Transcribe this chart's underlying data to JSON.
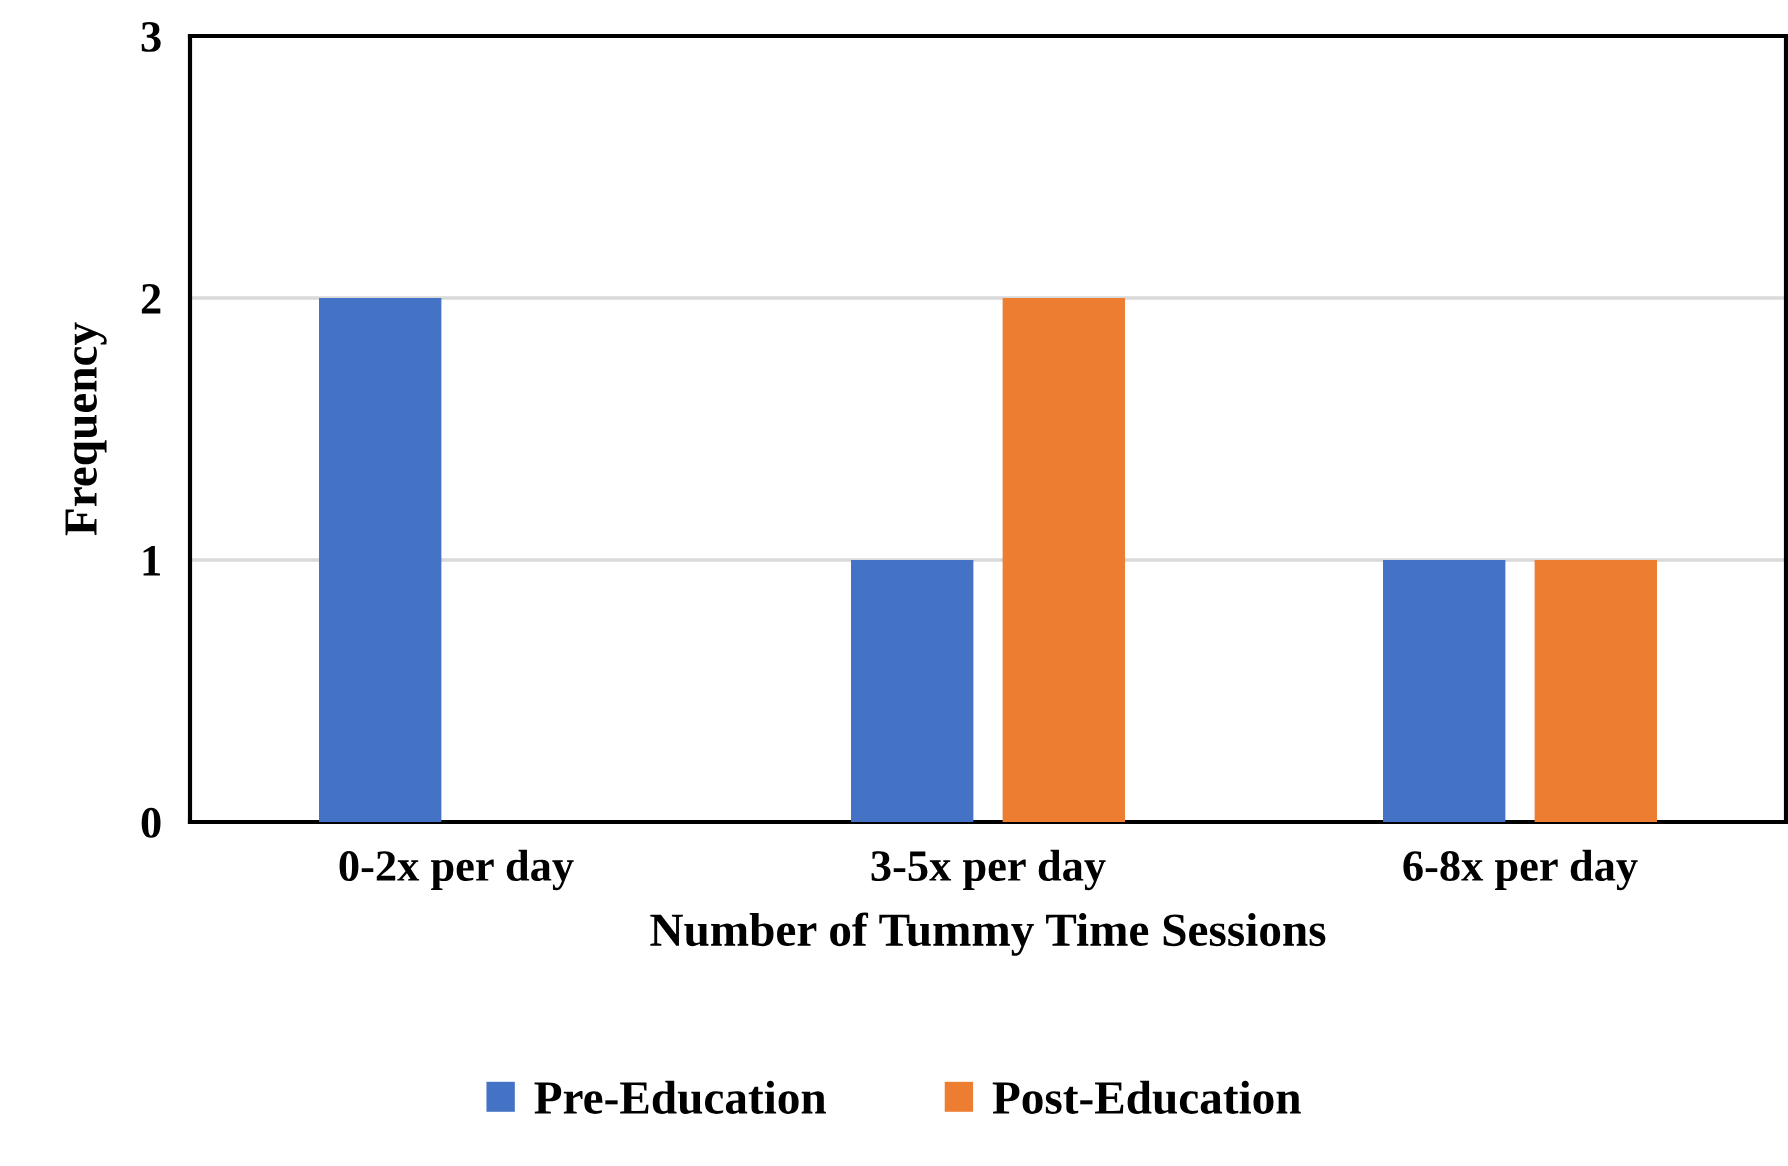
{
  "chart_data": {
    "type": "bar",
    "xlabel": "Number of Tummy Time Sessions",
    "ylabel": "Frequency",
    "categories": [
      "0-2x per day",
      "3-5x per day",
      "6-8x per day"
    ],
    "series": [
      {
        "name": "Pre-Education",
        "color": "#4472c4",
        "values": [
          2,
          1,
          1
        ]
      },
      {
        "name": "Post-Education",
        "color": "#ed7d31",
        "values": [
          0,
          2,
          1
        ]
      }
    ],
    "ylim": [
      0,
      3
    ],
    "yticks": [
      0,
      1,
      2,
      3
    ],
    "grid": "y",
    "legend": "bottom"
  }
}
